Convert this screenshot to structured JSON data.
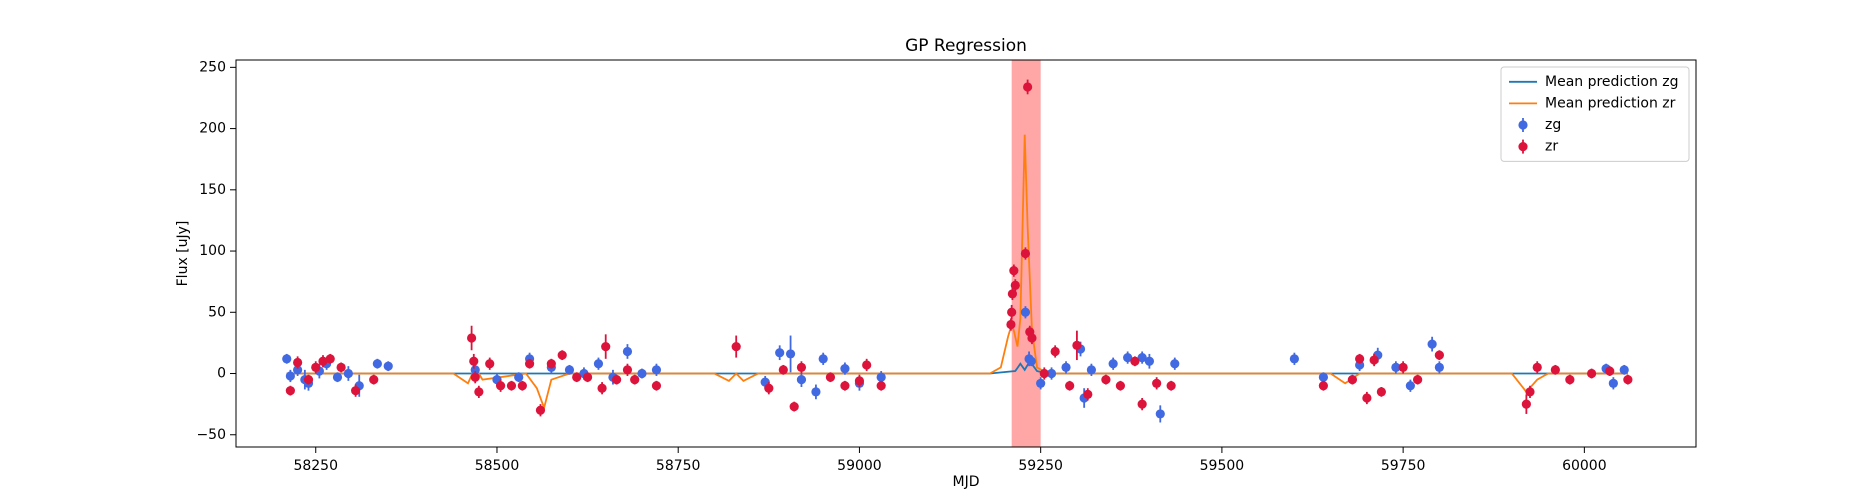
{
  "chart_data": {
    "type": "errorbar",
    "title": "GP Regression",
    "x_label": "MJD",
    "y_label": "Flux [uJy]",
    "xlim": [
      58140,
      60154
    ],
    "ylim": [
      -60,
      256
    ],
    "xticks": [
      58250,
      58500,
      58750,
      59000,
      59250,
      59500,
      59750,
      60000
    ],
    "yticks": [
      {
        "value": -50,
        "label": "−50"
      },
      0,
      50,
      100,
      150,
      200,
      250
    ],
    "legend_position": "upper right",
    "highlight_span": {
      "xlim": [
        59210,
        59250
      ],
      "color": "#ff0000"
    },
    "series": [
      {
        "name": "Mean prediction zg",
        "kind": "line",
        "color": "#1f77b4",
        "x": [
          58210,
          59180,
          59215,
          59222,
          59228,
          59235,
          59245,
          59260,
          60060
        ],
        "values": [
          0,
          0,
          2,
          8,
          3,
          10,
          2,
          0,
          0
        ]
      },
      {
        "name": "Mean prediction zr",
        "kind": "line",
        "color": "#ff7f0e",
        "x": [
          58210,
          58350,
          58440,
          58460,
          58470,
          58480,
          58540,
          58555,
          58565,
          58575,
          58600,
          58800,
          58820,
          58830,
          58840,
          58860,
          59150,
          59180,
          59195,
          59205,
          59210,
          59213,
          59218,
          59222,
          59225,
          59228,
          59232,
          59238,
          59245,
          59260,
          59450,
          59650,
          59670,
          59690,
          59800,
          59900,
          59920,
          59935,
          59950,
          60060
        ],
        "values": [
          0,
          0,
          0,
          -8,
          5,
          -5,
          0,
          -12,
          -28,
          -5,
          0,
          0,
          -6,
          0,
          -6,
          0,
          0,
          0,
          5,
          30,
          40,
          35,
          22,
          45,
          120,
          195,
          120,
          35,
          5,
          0,
          0,
          0,
          -8,
          0,
          0,
          0,
          -15,
          -5,
          0,
          0
        ]
      },
      {
        "name": "zg",
        "kind": "errorbar",
        "color": "#4169e1",
        "x": [
          58210,
          58215,
          58225,
          58235,
          58240,
          58255,
          58265,
          58280,
          58295,
          58310,
          58335,
          58350,
          58470,
          58500,
          58530,
          58545,
          58575,
          58600,
          58620,
          58640,
          58660,
          58680,
          58700,
          58720,
          58870,
          58890,
          58905,
          58920,
          58940,
          58950,
          58980,
          59000,
          59030,
          59229,
          59234,
          59237,
          59250,
          59265,
          59285,
          59305,
          59310,
          59320,
          59350,
          59370,
          59390,
          59400,
          59415,
          59435,
          59600,
          59640,
          59690,
          59715,
          59740,
          59760,
          59790,
          59800,
          60030,
          60040,
          60055
        ],
        "values": [
          12,
          -2,
          3,
          -5,
          -8,
          2,
          8,
          -3,
          0,
          -10,
          8,
          6,
          3,
          -5,
          -3,
          12,
          5,
          3,
          0,
          8,
          -3,
          18,
          0,
          3,
          -7,
          17,
          16,
          -5,
          -15,
          12,
          4,
          -8,
          -3,
          50,
          12,
          10,
          -8,
          0,
          5,
          20,
          -20,
          3,
          8,
          13,
          13,
          10,
          -33,
          8,
          12,
          -3,
          7,
          15,
          5,
          -10,
          24,
          5,
          4,
          -8,
          3
        ],
        "errors": [
          4,
          5,
          5,
          8,
          6,
          6,
          5,
          4,
          6,
          9,
          4,
          4,
          5,
          5,
          4,
          5,
          5,
          4,
          5,
          5,
          6,
          6,
          4,
          5,
          5,
          6,
          15,
          6,
          6,
          5,
          5,
          6,
          5,
          5,
          6,
          4,
          5,
          5,
          5,
          6,
          8,
          5,
          5,
          5,
          5,
          6,
          7,
          5,
          5,
          4,
          5,
          6,
          5,
          5,
          6,
          5,
          4,
          5,
          4
        ]
      },
      {
        "name": "zr",
        "kind": "errorbar",
        "color": "#dc143c",
        "x": [
          58215,
          58225,
          58240,
          58250,
          58260,
          58270,
          58285,
          58305,
          58330,
          58465,
          58468,
          58470,
          58475,
          58490,
          58505,
          58520,
          58535,
          58545,
          58560,
          58575,
          58590,
          58610,
          58625,
          58645,
          58650,
          58665,
          58680,
          58690,
          58720,
          58830,
          58875,
          58895,
          58910,
          58920,
          58960,
          58980,
          59000,
          59010,
          59030,
          59209,
          59210,
          59211,
          59213,
          59215,
          59229,
          59232,
          59235,
          59238,
          59255,
          59270,
          59290,
          59300,
          59315,
          59340,
          59360,
          59380,
          59390,
          59410,
          59430,
          59640,
          59680,
          59690,
          59700,
          59710,
          59720,
          59750,
          59770,
          59800,
          59920,
          59925,
          59935,
          59960,
          59980,
          60010,
          60035,
          60060
        ],
        "values": [
          -14,
          9,
          -5,
          5,
          10,
          12,
          5,
          -14,
          -5,
          29,
          10,
          -3,
          -15,
          8,
          -10,
          -10,
          -10,
          8,
          -30,
          8,
          15,
          -3,
          -3,
          -12,
          22,
          -5,
          3,
          -5,
          -10,
          22,
          -12,
          3,
          -27,
          5,
          -3,
          -10,
          -6,
          7,
          -10,
          40,
          50,
          65,
          84,
          72,
          98,
          234,
          34,
          29,
          0,
          18,
          -10,
          23,
          -17,
          -5,
          -10,
          10,
          -25,
          -8,
          -10,
          -10,
          -5,
          12,
          -20,
          11,
          -15,
          5,
          -5,
          15,
          -25,
          -15,
          5,
          3,
          -5,
          0,
          2,
          -5
        ],
        "errors": [
          4,
          5,
          4,
          5,
          5,
          4,
          4,
          5,
          4,
          10,
          6,
          5,
          5,
          5,
          5,
          4,
          4,
          4,
          5,
          4,
          4,
          4,
          4,
          5,
          10,
          4,
          5,
          4,
          4,
          9,
          5,
          4,
          4,
          5,
          4,
          4,
          5,
          5,
          4,
          5,
          6,
          5,
          5,
          5,
          5,
          6,
          5,
          5,
          5,
          5,
          4,
          12,
          5,
          4,
          4,
          4,
          5,
          5,
          4,
          4,
          4,
          4,
          5,
          5,
          4,
          5,
          4,
          4,
          8,
          5,
          5,
          4,
          4,
          4,
          4,
          4
        ]
      }
    ]
  }
}
